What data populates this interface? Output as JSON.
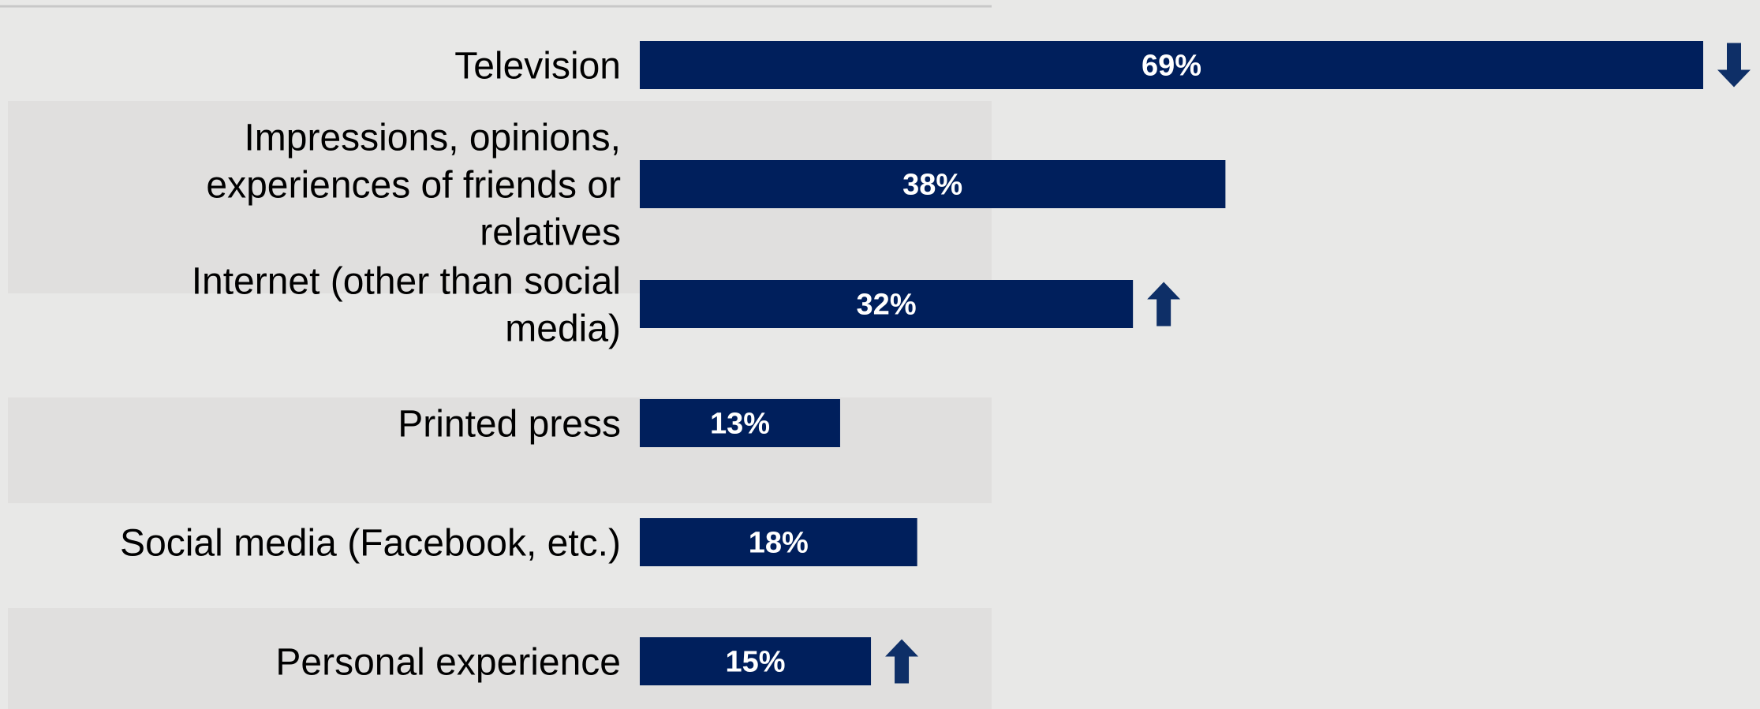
{
  "chart_data": {
    "type": "bar",
    "orientation": "horizontal",
    "categories": [
      [
        "Television"
      ],
      [
        "Impressions, opinions,",
        "experiences of friends or",
        "relatives"
      ],
      [
        "Internet (other than social",
        "media)"
      ],
      [
        "Printed press"
      ],
      [
        "Social media (Facebook, etc.)"
      ],
      [
        "Personal experience"
      ]
    ],
    "values": [
      69,
      38,
      32,
      13,
      18,
      15
    ],
    "value_labels": [
      "69%",
      "38%",
      "32%",
      "13%",
      "18%",
      "15%"
    ],
    "unit": "%",
    "trend_arrows": [
      "down",
      "none",
      "up",
      "none",
      "none",
      "up"
    ],
    "xlim": [
      0,
      69
    ],
    "grid": false,
    "legend": "none",
    "title": "",
    "xlabel": "",
    "ylabel": ""
  },
  "colors": {
    "bar": "#001f5c",
    "arrow": "#0e2f67",
    "background": "#e8e8e7",
    "band": "#e0dfde",
    "value_text": "#ffffff",
    "category_text": "#000000"
  }
}
